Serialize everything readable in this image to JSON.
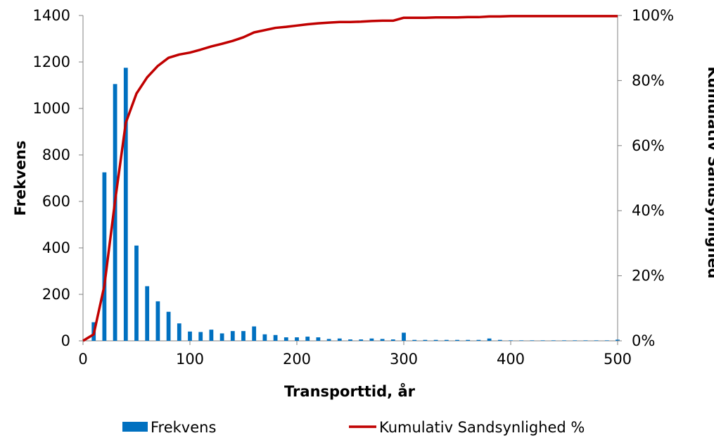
{
  "chart_data": {
    "type": "bar",
    "xlabel": "Transporttid, år",
    "ylabel": "Frekvens",
    "y2label": "Kumulativ Sandsynlighed",
    "xlim": [
      0,
      500
    ],
    "ylim": [
      0,
      1400
    ],
    "y2lim": [
      0,
      1
    ],
    "x_ticks": [
      0,
      100,
      200,
      300,
      400,
      500
    ],
    "y_ticks": [
      0,
      200,
      400,
      600,
      800,
      1000,
      1200,
      1400
    ],
    "y2_ticks": [
      "0%",
      "20%",
      "40%",
      "60%",
      "80%",
      "100%"
    ],
    "grid": false,
    "legend_position": "bottom",
    "colors": {
      "bars": "#0070c0",
      "line": "#c00000",
      "axis": "#808080"
    },
    "series": [
      {
        "name": "Frekvens",
        "type": "bar",
        "x": [
          10,
          20,
          30,
          40,
          50,
          60,
          70,
          80,
          90,
          100,
          110,
          120,
          130,
          140,
          150,
          160,
          170,
          180,
          190,
          200,
          210,
          220,
          230,
          240,
          250,
          260,
          270,
          280,
          290,
          300,
          310,
          320,
          330,
          340,
          350,
          360,
          370,
          380,
          390,
          400,
          410,
          420,
          430,
          440,
          450,
          460,
          470,
          480,
          490,
          500
        ],
        "values": [
          80,
          725,
          1105,
          1175,
          410,
          235,
          170,
          125,
          75,
          40,
          38,
          48,
          32,
          42,
          42,
          62,
          28,
          25,
          15,
          15,
          18,
          15,
          8,
          10,
          6,
          6,
          10,
          8,
          6,
          35,
          4,
          4,
          4,
          4,
          4,
          4,
          4,
          10,
          4,
          2,
          2,
          2,
          2,
          2,
          2,
          2,
          2,
          2,
          2,
          5
        ]
      },
      {
        "name": "Kumulativ Sandsynlighed %",
        "type": "line",
        "axis": "right",
        "x": [
          0,
          10,
          20,
          30,
          40,
          50,
          60,
          70,
          80,
          90,
          100,
          110,
          120,
          130,
          140,
          150,
          160,
          170,
          180,
          190,
          200,
          210,
          220,
          230,
          240,
          250,
          260,
          270,
          280,
          290,
          300,
          310,
          320,
          330,
          340,
          350,
          360,
          370,
          380,
          390,
          400,
          410,
          420,
          430,
          440,
          450,
          460,
          470,
          480,
          490,
          500
        ],
        "values": [
          0.0,
          0.02,
          0.17,
          0.43,
          0.67,
          0.76,
          0.81,
          0.845,
          0.87,
          0.88,
          0.886,
          0.895,
          0.905,
          0.913,
          0.922,
          0.933,
          0.948,
          0.955,
          0.962,
          0.965,
          0.969,
          0.973,
          0.976,
          0.978,
          0.98,
          0.98,
          0.981,
          0.983,
          0.984,
          0.984,
          0.993,
          0.993,
          0.993,
          0.994,
          0.994,
          0.994,
          0.995,
          0.995,
          0.997,
          0.997,
          0.998,
          0.998,
          0.998,
          0.998,
          0.998,
          0.998,
          0.998,
          0.998,
          0.998,
          0.998,
          0.998
        ]
      }
    ]
  }
}
